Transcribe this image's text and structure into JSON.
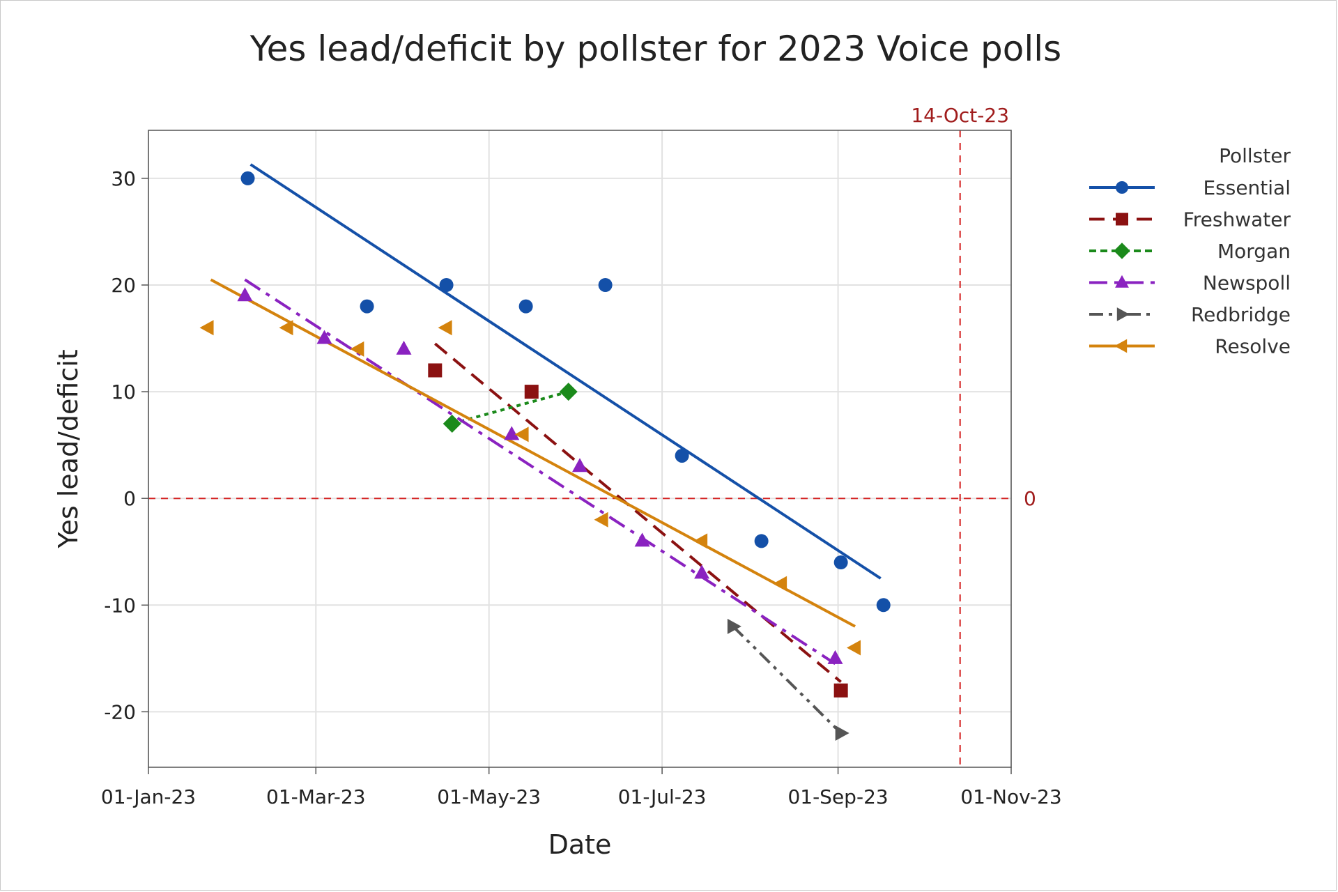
{
  "chart_data": {
    "type": "scatter",
    "title": "Yes lead/deficit by pollster for 2023 Voice polls",
    "xlabel": "Date",
    "ylabel": "Yes lead/deficit",
    "x_ticks": [
      "01-Jan-23",
      "01-Mar-23",
      "01-May-23",
      "01-Jul-23",
      "01-Sep-23",
      "01-Nov-23"
    ],
    "x_tick_days": [
      0,
      59,
      120,
      181,
      243,
      304
    ],
    "xlim_days": [
      0,
      304
    ],
    "y_ticks": [
      -20,
      -10,
      0,
      10,
      20,
      30
    ],
    "ylim": [
      -25.2,
      34.5
    ],
    "grid": true,
    "x_unit": "days since 01-Jan-23",
    "reference_lines": {
      "vertical": {
        "label": "14-Oct-23",
        "day": 286,
        "color": "#d42020"
      },
      "horizontal": {
        "label": "0",
        "value": 0,
        "color": "#d42020"
      }
    },
    "legend": {
      "title": "Pollster",
      "position": "right"
    },
    "series": [
      {
        "name": "Essential",
        "color": "#1450a8",
        "marker": "circle",
        "line": "solid",
        "points": [
          [
            35,
            30
          ],
          [
            77,
            18
          ],
          [
            105,
            20
          ],
          [
            133,
            18
          ],
          [
            161,
            20
          ],
          [
            188,
            4
          ],
          [
            216,
            -4
          ],
          [
            244,
            -6
          ],
          [
            259,
            -10
          ]
        ],
        "trend": [
          [
            36,
            31.3
          ],
          [
            258,
            -7.5
          ]
        ]
      },
      {
        "name": "Freshwater",
        "color": "#8b1111",
        "marker": "square",
        "line": "dash",
        "points": [
          [
            101,
            12
          ],
          [
            135,
            10
          ],
          [
            244,
            -18
          ]
        ],
        "trend": [
          [
            101,
            14.5
          ],
          [
            244,
            -17.2
          ]
        ]
      },
      {
        "name": "Morgan",
        "color": "#1b8a1b",
        "marker": "diamond",
        "line": "dot",
        "points": [
          [
            107,
            7
          ],
          [
            148,
            10
          ]
        ],
        "trend": [
          [
            107,
            7
          ],
          [
            148,
            10
          ]
        ]
      },
      {
        "name": "Newspoll",
        "color": "#8a22c0",
        "marker": "triangle-up",
        "line": "dashdot",
        "points": [
          [
            34,
            19
          ],
          [
            62,
            15
          ],
          [
            90,
            14
          ],
          [
            128,
            6
          ],
          [
            152,
            3
          ],
          [
            174,
            -4
          ],
          [
            195,
            -7
          ],
          [
            242,
            -15
          ]
        ],
        "trend": [
          [
            34,
            20.5
          ],
          [
            242,
            -15.5
          ]
        ]
      },
      {
        "name": "Redbridge",
        "color": "#555555",
        "marker": "triangle-right",
        "line": "dashdotdot",
        "points": [
          [
            206,
            -12
          ],
          [
            244,
            -22
          ]
        ],
        "trend": [
          [
            206,
            -12
          ],
          [
            244,
            -22
          ]
        ]
      },
      {
        "name": "Resolve",
        "color": "#d4830d",
        "marker": "triangle-left",
        "line": "solid",
        "points": [
          [
            21,
            16
          ],
          [
            49,
            16
          ],
          [
            74,
            14
          ],
          [
            105,
            16
          ],
          [
            132,
            6
          ],
          [
            160,
            -2
          ],
          [
            195,
            -4
          ],
          [
            223,
            -8
          ],
          [
            249,
            -14
          ]
        ],
        "trend": [
          [
            22,
            20.5
          ],
          [
            249,
            -12
          ]
        ]
      }
    ]
  }
}
